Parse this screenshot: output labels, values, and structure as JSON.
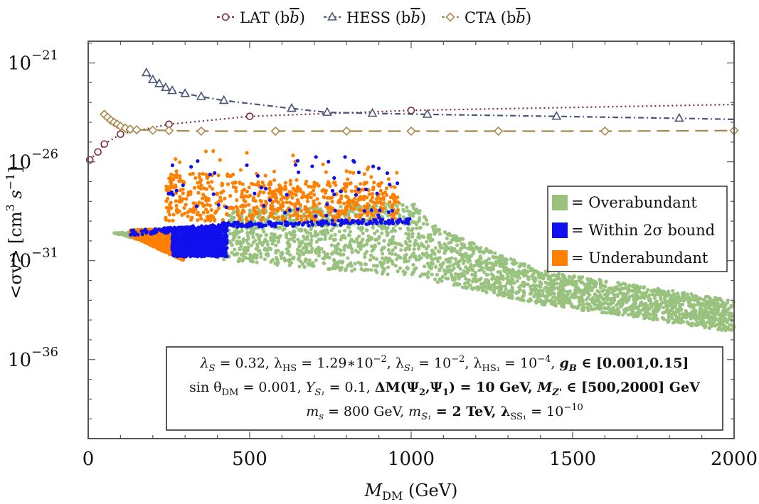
{
  "chart_data": {
    "type": "scatter",
    "title": "",
    "xlabel": "M_DM (GeV)",
    "ylabel": "<σv> [cm^3 s^-1]",
    "xlim": [
      0,
      2000
    ],
    "ylim_log10": [
      -40,
      -19.9
    ],
    "x_ticks": [
      0,
      500,
      1000,
      1500,
      2000
    ],
    "x_tick_labels": [
      "0",
      "500",
      "1000",
      "1500",
      "2000"
    ],
    "y_ticks_log10": [
      -21,
      -26,
      -31,
      -36
    ],
    "y_tick_labels": [
      {
        "base": "10",
        "exp": "−21"
      },
      {
        "base": "10",
        "exp": "−26"
      },
      {
        "base": "10",
        "exp": "−31"
      },
      {
        "base": "10",
        "exp": "−36"
      }
    ],
    "legend_top": [
      {
        "label": "LAT (b",
        "bar": "b",
        "close": ")",
        "color": "#7a2a3a",
        "marker": "circle"
      },
      {
        "label": "HESS (b",
        "bar": "b",
        "close": ")",
        "color": "#4a5578",
        "marker": "triangle"
      },
      {
        "label": "CTA (b",
        "bar": "b",
        "close": ")",
        "color": "#a8874a",
        "marker": "diamond"
      }
    ],
    "series_lines": [
      {
        "name": "LAT (bb̄)",
        "color": "#7a2a3a",
        "dash": "dotted",
        "marker": "circle",
        "x": [
          5,
          30,
          50,
          100,
          250,
          500,
          1000,
          2000
        ],
        "y_log10": [
          -25.9,
          -25.5,
          -25.1,
          -24.6,
          -24.1,
          -23.7,
          -23.4,
          -23.1
        ],
        "marker_x": [
          5,
          30,
          50,
          100,
          250,
          500,
          1000
        ]
      },
      {
        "name": "HESS (bb̄)",
        "color": "#4a5578",
        "dash": "dashdot",
        "marker": "triangle",
        "x": [
          180,
          200,
          220,
          240,
          260,
          300,
          350,
          420,
          630,
          740,
          880,
          1050,
          1450,
          1830,
          2000
        ],
        "y_log10": [
          -21.5,
          -21.85,
          -22.05,
          -22.25,
          -22.4,
          -22.55,
          -22.7,
          -22.9,
          -23.3,
          -23.5,
          -23.55,
          -23.6,
          -23.7,
          -23.8,
          -23.85
        ],
        "marker_x": [
          180,
          200,
          220,
          240,
          260,
          300,
          350,
          420,
          630,
          740,
          880,
          1050,
          1450,
          1830
        ]
      },
      {
        "name": "CTA (bb̄)",
        "color": "#a8874a",
        "dash": "dashed",
        "marker": "diamond",
        "x": [
          50,
          60,
          70,
          80,
          90,
          100,
          115,
          130,
          150,
          200,
          250,
          350,
          500,
          600,
          800,
          1000,
          1300,
          1600,
          2000
        ],
        "y_log10": [
          -23.6,
          -23.75,
          -23.9,
          -24.0,
          -24.1,
          -24.2,
          -24.3,
          -24.35,
          -24.38,
          -24.4,
          -24.42,
          -24.45,
          -24.45,
          -24.45,
          -24.45,
          -24.45,
          -24.45,
          -24.45,
          -24.42
        ],
        "marker_x": [
          50,
          60,
          70,
          80,
          90,
          100,
          115,
          130,
          150,
          200,
          250,
          350,
          580,
          800,
          1000,
          1270,
          1600,
          2000
        ]
      }
    ],
    "scatter_legend": [
      {
        "label": "=  Overabundant",
        "color": "#98c27e"
      },
      {
        "label": "= Within 2σ bound",
        "color": "#1010ee"
      },
      {
        "label": "= Underabundant",
        "color": "#ff8000"
      }
    ],
    "scatter_regions": [
      {
        "name": "Overabundant",
        "color": "#98c27e",
        "x_range": [
          80,
          2000
        ],
        "y_log10_upper": [
          [
            80,
            -29.6
          ],
          [
            300,
            -29.3
          ],
          [
            430,
            -28.5
          ],
          [
            1000,
            -28.0
          ],
          [
            1100,
            -29.5
          ],
          [
            1400,
            -31.5
          ],
          [
            2000,
            -33.0
          ]
        ],
        "y_log10_lower": [
          [
            80,
            -29.6
          ],
          [
            300,
            -30.6
          ],
          [
            430,
            -31.0
          ],
          [
            1000,
            -31.8
          ],
          [
            1400,
            -33.2
          ],
          [
            2000,
            -34.6
          ]
        ]
      },
      {
        "name": "Within 2σ bound",
        "color": "#1010ee",
        "x_range": [
          130,
          1000
        ],
        "band_log10": [
          [
            130,
            -29.6
          ],
          [
            300,
            -29.4
          ],
          [
            430,
            -29.2
          ],
          [
            1000,
            -29.0
          ]
        ]
      },
      {
        "name": "Underabundant",
        "color": "#ff8000",
        "x_range": [
          130,
          1000
        ],
        "upper_log10": -26.3,
        "lower_log10": -29.1
      }
    ],
    "annotation_lines": [
      {
        "parts": [
          {
            "t": "λ",
            "i": true
          },
          {
            "t": "S",
            "i": true,
            "sub": true
          },
          {
            "t": " = 0.32, λ"
          },
          {
            "t": "HS",
            "sub": true
          },
          {
            "t": " = 1.29∗10"
          },
          {
            "t": "−2",
            "sup": true
          },
          {
            "t": ",  λ"
          },
          {
            "t": "S₁",
            "i": true,
            "sub": true
          },
          {
            "t": " = 10"
          },
          {
            "t": "−2",
            "sup": true
          },
          {
            "t": ", λ"
          },
          {
            "t": "HS₁",
            "sub": true
          },
          {
            "t": " = 10"
          },
          {
            "t": "−4",
            "sup": true
          },
          {
            "t": ",  "
          },
          {
            "t": "g",
            "b": true,
            "i": true
          },
          {
            "t": "B",
            "b": true,
            "i": true,
            "sub": true
          },
          {
            "t": " ∈ [0.001,0.15]",
            "b": true
          }
        ]
      },
      {
        "parts": [
          {
            "t": "sin θ"
          },
          {
            "t": "DM",
            "sub": true
          },
          {
            "t": " = 0.001, "
          },
          {
            "t": "Y",
            "i": true
          },
          {
            "t": "S₁",
            "i": true,
            "sub": true
          },
          {
            "t": " = 0.1,   "
          },
          {
            "t": "ΔM(Ψ",
            "b": true
          },
          {
            "t": "2",
            "b": true,
            "sub": true
          },
          {
            "t": ",Ψ",
            "b": true
          },
          {
            "t": "1",
            "b": true,
            "sub": true
          },
          {
            "t": ") = 10 GeV, ",
            "b": true
          },
          {
            "t": "M",
            "b": true,
            "i": true
          },
          {
            "t": "Z'",
            "b": true,
            "i": true,
            "sub": true
          },
          {
            "t": " ∈ [500,2000] GeV",
            "b": true
          }
        ]
      },
      {
        "parts": [
          {
            "t": "m",
            "i": true
          },
          {
            "t": "s",
            "i": true,
            "sub": true
          },
          {
            "t": " = 800 GeV, "
          },
          {
            "t": "m",
            "i": true
          },
          {
            "t": "S₁",
            "i": true,
            "sub": true
          },
          {
            "t": " = 2 TeV",
            "b": true
          },
          {
            "t": ",  λ",
            "b": true
          },
          {
            "t": "SS₁",
            "sub": true
          },
          {
            "t": " =  10"
          },
          {
            "t": "−10",
            "sup": true
          }
        ]
      }
    ]
  }
}
